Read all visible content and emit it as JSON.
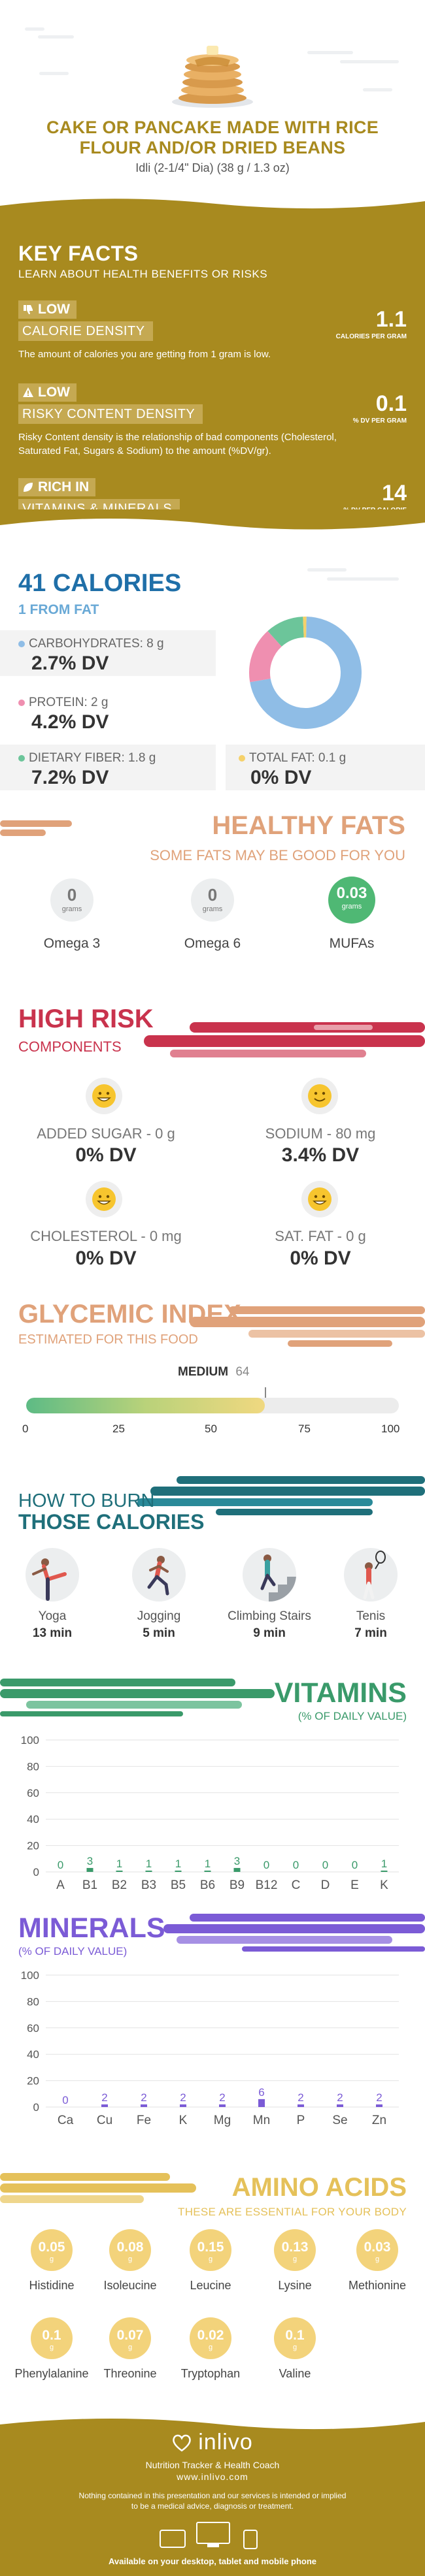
{
  "header": {
    "title_line1": "CAKE OR PANCAKE MADE WITH RICE",
    "title_line2": "FLOUR AND/OR DRIED BEANS",
    "serving": "Idli (2-1/4\" Dia) (38 g / 1.3 oz)"
  },
  "key_facts": {
    "title": "KEY FACTS",
    "subtitle": "LEARN ABOUT HEALTH BENEFITS OR RISKS",
    "items": [
      {
        "level": "LOW",
        "name": "CALORIE DENSITY",
        "value": "1.1",
        "unit": "CALORIES PER GRAM",
        "desc": "The amount of calories you are getting from 1 gram is low."
      },
      {
        "level": "LOW",
        "name": "RISKY CONTENT DENSITY",
        "value": "0.1",
        "unit": "% DV PER GRAM",
        "desc": "Risky Content density is the relationship of bad components (Cholesterol, Saturated Fat, Sugars & Sodium) to the amount (%DV/gr)."
      },
      {
        "level": "RICH  IN",
        "name": "VITAMINS & MINERALS",
        "value": "14",
        "unit": "% DV PER CALORIE",
        "desc": ""
      }
    ]
  },
  "calories": {
    "title": "41 CALORIES",
    "from_fat": "1 FROM FAT",
    "nutrients": [
      {
        "label": "CARBOHYDRATES: 8 g",
        "dv": "2.7% DV",
        "color": "#8fbde6"
      },
      {
        "label": "PROTEIN: 2 g",
        "dv": "4.2% DV",
        "color": "#ef8fb0"
      },
      {
        "label": "DIETARY FIBER: 1.8 g",
        "dv": "7.2% DV",
        "color": "#6cc59a"
      },
      {
        "label": "TOTAL FAT: 0.1 g",
        "dv": "0% DV",
        "color": "#f5d16a"
      }
    ],
    "donut_shares": [
      0.72,
      0.16,
      0.11,
      0.01
    ]
  },
  "healthy_fats": {
    "title": "HEALTHY FATS",
    "subtitle": "SOME FATS MAY BE GOOD FOR YOU",
    "items": [
      {
        "value": "0",
        "unit": "grams",
        "name": "Omega 3",
        "highlight": false
      },
      {
        "value": "0",
        "unit": "grams",
        "name": "Omega 6",
        "highlight": false
      },
      {
        "value": "0.03",
        "unit": "grams",
        "name": "MUFAs",
        "highlight": true
      }
    ]
  },
  "high_risk": {
    "title": "HIGH RISK",
    "subtitle": "COMPONENTS",
    "items": [
      {
        "label": "ADDED SUGAR - 0 g",
        "dv": "0% DV"
      },
      {
        "label": "SODIUM - 80 mg",
        "dv": "3.4% DV"
      },
      {
        "label": "CHOLESTEROL - 0 mg",
        "dv": "0% DV"
      },
      {
        "label": "SAT. FAT - 0 g",
        "dv": "0% DV"
      }
    ]
  },
  "glycemic": {
    "title": "GLYCEMIC INDEX",
    "subtitle": "ESTIMATED FOR THIS FOOD",
    "level": "MEDIUM",
    "value": "64",
    "fraction": 0.64,
    "ticks": [
      "0",
      "25",
      "50",
      "75",
      "100"
    ]
  },
  "burn": {
    "line1": "HOW TO BURN",
    "line2": "THOSE CALORIES",
    "activities": [
      {
        "name": "Yoga",
        "time": "13 min",
        "icon": "yoga-icon"
      },
      {
        "name": "Jogging",
        "time": "5 min",
        "icon": "jogging-icon"
      },
      {
        "name": "Climbing Stairs",
        "time": "9 min",
        "icon": "stairs-icon"
      },
      {
        "name": "Tenis",
        "time": "7 min",
        "icon": "tennis-icon"
      }
    ]
  },
  "chart_data": [
    {
      "type": "bar",
      "title": "VITAMINS",
      "subtitle": "(% OF DAILY VALUE)",
      "categories": [
        "A",
        "B1",
        "B2",
        "B3",
        "B5",
        "B6",
        "B9",
        "B12",
        "C",
        "D",
        "E",
        "K"
      ],
      "values": [
        0,
        3,
        1,
        1,
        1,
        1,
        3,
        0,
        0,
        0,
        0,
        1
      ],
      "ylim": [
        0,
        100
      ],
      "yticks": [
        "100",
        "80",
        "60",
        "40",
        "20",
        "0"
      ],
      "color": "#3a9a6a"
    },
    {
      "type": "bar",
      "title": "MINERALS",
      "subtitle": "(% OF DAILY VALUE)",
      "categories": [
        "Ca",
        "Cu",
        "Fe",
        "K",
        "Mg",
        "Mn",
        "P",
        "Se",
        "Zn"
      ],
      "values": [
        0,
        2,
        2,
        2,
        2,
        6,
        2,
        2,
        2
      ],
      "ylim": [
        0,
        100
      ],
      "yticks": [
        "100",
        "80",
        "60",
        "40",
        "20",
        "0"
      ],
      "color": "#7b5bd6"
    }
  ],
  "amino": {
    "title": "AMINO ACIDS",
    "subtitle": "THESE ARE ESSENTIAL FOR YOUR BODY",
    "unit": "g",
    "items": [
      {
        "name": "Histidine",
        "value": "0.05"
      },
      {
        "name": "Isoleucine",
        "value": "0.08"
      },
      {
        "name": "Leucine",
        "value": "0.15"
      },
      {
        "name": "Lysine",
        "value": "0.13"
      },
      {
        "name": "Methionine",
        "value": "0.03"
      },
      {
        "name": "Phenylalanine",
        "value": "0.1"
      },
      {
        "name": "Threonine",
        "value": "0.07"
      },
      {
        "name": "Tryptophan",
        "value": "0.02"
      },
      {
        "name": "Valine",
        "value": "0.1"
      }
    ]
  },
  "footer": {
    "brand": "inlivo",
    "tagline": "Nutrition Tracker & Health Coach",
    "url": "www.inlivo.com",
    "disclaimer1": "Nothing contained in this presentation and our services is intended or implied",
    "disclaimer2": "to be a medical advice, diagnosis or treatment.",
    "available": "Available on your desktop, tablet and mobile phone"
  }
}
